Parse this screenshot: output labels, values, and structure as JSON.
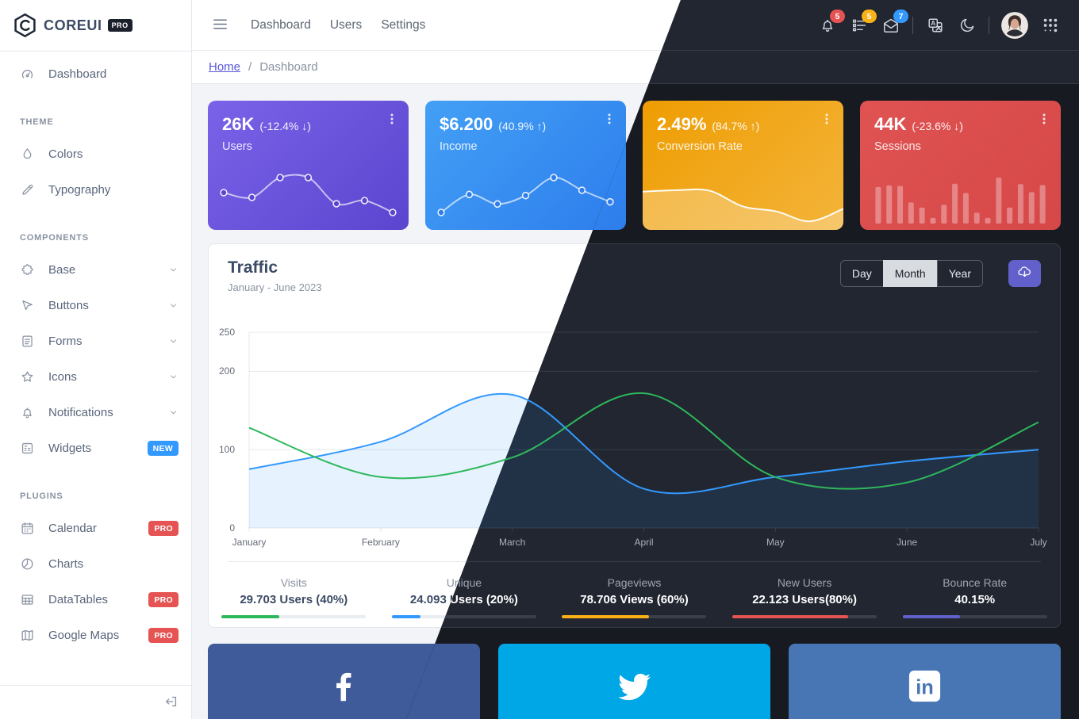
{
  "brand": {
    "name": "COREUI",
    "badge": "PRO"
  },
  "header": {
    "nav": [
      {
        "label": "Dashboard"
      },
      {
        "label": "Users"
      },
      {
        "label": "Settings"
      }
    ],
    "notifications": [
      {
        "icon": "bell-icon",
        "count": "5",
        "color": "#e55353"
      },
      {
        "icon": "checklist-icon",
        "count": "5",
        "color": "#f9b115"
      },
      {
        "icon": "envelope-open-icon",
        "count": "7",
        "color": "#3399ff"
      }
    ]
  },
  "breadcrumb": {
    "home": "Home",
    "separator": "/",
    "current": "Dashboard"
  },
  "sidebar": {
    "sections": [
      {
        "title": "",
        "items": [
          {
            "label": "Dashboard",
            "icon": "speedometer-icon"
          }
        ]
      },
      {
        "title": "THEME",
        "items": [
          {
            "label": "Colors",
            "icon": "drop-icon"
          },
          {
            "label": "Typography",
            "icon": "pencil-icon"
          }
        ]
      },
      {
        "title": "COMPONENTS",
        "items": [
          {
            "label": "Base",
            "icon": "puzzle-icon"
          },
          {
            "label": "Buttons",
            "icon": "cursor-icon"
          },
          {
            "label": "Forms",
            "icon": "notes-icon"
          },
          {
            "label": "Icons",
            "icon": "star-icon"
          },
          {
            "label": "Notifications",
            "icon": "bell-icon"
          },
          {
            "label": "Widgets",
            "icon": "widgets-icon",
            "badge": {
              "text": "NEW",
              "color": "#3399ff"
            }
          }
        ]
      },
      {
        "title": "PLUGINS",
        "items": [
          {
            "label": "Calendar",
            "icon": "calendar-icon",
            "badge": {
              "text": "PRO",
              "color": "#e55353"
            }
          },
          {
            "label": "Charts",
            "icon": "chart-pie-icon"
          },
          {
            "label": "DataTables",
            "icon": "table-icon",
            "badge": {
              "text": "PRO",
              "color": "#e55353"
            }
          },
          {
            "label": "Google Maps",
            "icon": "map-icon",
            "badge": {
              "text": "PRO",
              "color": "#e55353"
            }
          }
        ]
      }
    ]
  },
  "widgets": [
    {
      "value": "26K",
      "delta": "(-12.4% ↓)",
      "label": "Users",
      "gradient": [
        "#7a63e8",
        "#5b45cf"
      ],
      "spark_type": "line",
      "spark": [
        65,
        59,
        84,
        84,
        51,
        55,
        40
      ]
    },
    {
      "value": "$6.200",
      "delta": "(40.9% ↑)",
      "label": "Income",
      "gradient": [
        "#43a0f5",
        "#2d7dec"
      ],
      "spark_type": "line",
      "spark": [
        1,
        18,
        9,
        17,
        34,
        22,
        11
      ]
    },
    {
      "value": "2.49%",
      "delta": "(84.7% ↑)",
      "label": "Conversion Rate",
      "gradient": [
        "#ee9d02",
        "#f4b43a"
      ],
      "spark_type": "area",
      "spark": [
        78,
        81,
        80,
        45,
        34,
        12,
        40
      ]
    },
    {
      "value": "44K",
      "delta": "(-23.6% ↓)",
      "label": "Sessions",
      "gradient": [
        "#e05353",
        "#d64848"
      ],
      "spark_type": "bars",
      "spark": [
        78,
        81,
        80,
        45,
        34,
        12,
        40,
        85,
        65,
        23,
        12,
        98,
        34,
        84,
        67,
        82
      ]
    }
  ],
  "traffic": {
    "title": "Traffic",
    "subtitle": "January - June 2023",
    "ranges": [
      {
        "label": "Day"
      },
      {
        "label": "Month",
        "active": true
      },
      {
        "label": "Year"
      }
    ],
    "download_icon": "cloud-download-icon",
    "accent": "#6261cc"
  },
  "chart_data": {
    "type": "line",
    "title": "Traffic",
    "subtitle": "January - June 2023",
    "x": [
      "January",
      "February",
      "March",
      "April",
      "May",
      "June",
      "July"
    ],
    "yticks": [
      0,
      100,
      200,
      250
    ],
    "ylim": [
      0,
      250
    ],
    "grid": true,
    "legend": "none",
    "series": [
      {
        "name": "traffic-current",
        "color": "#3399ff",
        "fill": true,
        "values": [
          75,
          110,
          170,
          50,
          65,
          85,
          100
        ]
      },
      {
        "name": "traffic-previous",
        "color": "#2eb85c",
        "fill": false,
        "values": [
          128,
          65,
          90,
          172,
          65,
          58,
          135
        ]
      }
    ]
  },
  "footer_stats": [
    {
      "label": "Visits",
      "value": "29.703 Users (40%)",
      "percent": 40,
      "color": "#2eb85c"
    },
    {
      "label": "Unique",
      "value": "24.093 Users (20%)",
      "percent": 20,
      "color": "#3399ff"
    },
    {
      "label": "Pageviews",
      "value": "78.706 Views (60%)",
      "percent": 60,
      "color": "#f9b115"
    },
    {
      "label": "New Users",
      "value": "22.123 Users(80%)",
      "percent": 80,
      "color": "#e55353"
    },
    {
      "label": "Bounce Rate",
      "value": "40.15%",
      "percent": 40,
      "color": "#6261cc"
    }
  ],
  "social": [
    {
      "name": "facebook",
      "icon": "facebook-icon",
      "color": "#3f5b9a"
    },
    {
      "name": "twitter",
      "icon": "twitter-icon",
      "color": "#00a7e6"
    },
    {
      "name": "linkedin",
      "icon": "linkedin-icon",
      "color": "#4875b4"
    }
  ],
  "theme": {
    "accent": "#6261cc",
    "info": "#3399ff",
    "success": "#2eb85c",
    "warning": "#f9b115",
    "danger": "#e55353"
  }
}
